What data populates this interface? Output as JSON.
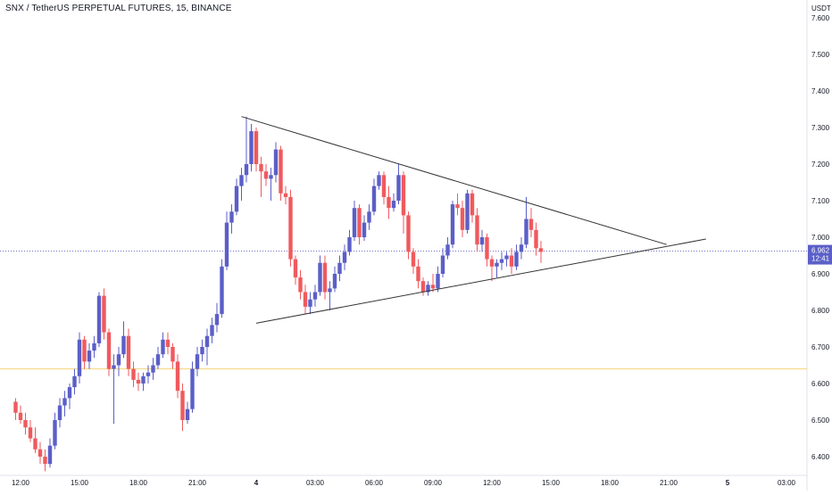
{
  "chart_data": {
    "type": "candlestick",
    "title": "SNX / TetherUS PERPETUAL FUTURES, 15, BINANCE",
    "ylabel": "USDT",
    "ylim": [
      6.35,
      7.65
    ],
    "y_ticks": [
      "7.600",
      "7.500",
      "7.400",
      "7.300",
      "7.200",
      "7.100",
      "7.000",
      "6.900",
      "6.800",
      "6.700",
      "6.600",
      "6.500",
      "6.400"
    ],
    "x_ticks": [
      "12:00",
      "15:00",
      "18:00",
      "21:00",
      "4",
      "03:00",
      "06:00",
      "09:00",
      "12:00",
      "15:00",
      "18:00",
      "21:00",
      "5",
      "03:00"
    ],
    "x_tick_hours": [
      12,
      15,
      18,
      21,
      24,
      27,
      30,
      33,
      36,
      39,
      42,
      45,
      48,
      51
    ],
    "last_price": "6.962",
    "countdown": "12:41",
    "horizontal_line_price": 6.64,
    "colors": {
      "up": "#5b5fc7",
      "down": "#ef5a5e",
      "last_price_line": "#5b5fc7",
      "horizontal_line": "#f3d37a",
      "trendline": "#333333"
    },
    "trendlines": [
      {
        "name": "upper",
        "points": [
          [
            23.25,
            7.33
          ],
          [
            44.9,
            6.98
          ]
        ]
      },
      {
        "name": "lower",
        "points": [
          [
            24.0,
            6.765
          ],
          [
            46.9,
            6.995
          ]
        ]
      }
    ],
    "candles": []
  }
}
